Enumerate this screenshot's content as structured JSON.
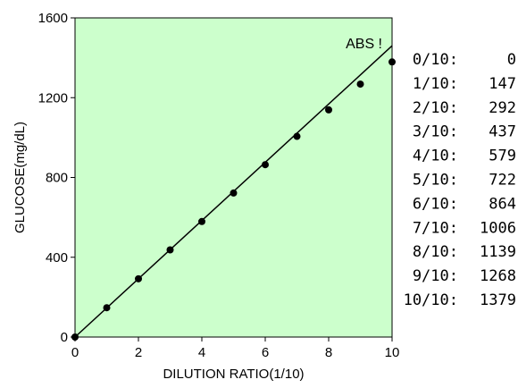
{
  "chart_data": {
    "type": "scatter",
    "xlabel": "DILUTION RATIO(1/10)",
    "ylabel": "GLUCOSE(mg/dL)",
    "xlim": [
      0,
      10
    ],
    "ylim": [
      0,
      1600
    ],
    "xticks": [
      "0",
      "2",
      "4",
      "6",
      "8",
      "10"
    ],
    "yticks": [
      "0",
      "400",
      "800",
      "1200",
      "1600"
    ],
    "plot_background": "#ccffcc",
    "grid": false,
    "annotation": "ABS !",
    "points": {
      "x": [
        0,
        1,
        2,
        3,
        4,
        5,
        6,
        7,
        8,
        9,
        10
      ],
      "y": [
        0,
        147,
        292,
        437,
        579,
        722,
        864,
        1006,
        1139,
        1268,
        1379
      ]
    },
    "fit_line": {
      "x": [
        0,
        10
      ],
      "y": [
        0,
        1460
      ]
    }
  },
  "table": {
    "rows": [
      {
        "label": "0/10:",
        "value": "0"
      },
      {
        "label": "1/10:",
        "value": "147"
      },
      {
        "label": "2/10:",
        "value": "292"
      },
      {
        "label": "3/10:",
        "value": "437"
      },
      {
        "label": "4/10:",
        "value": "579"
      },
      {
        "label": "5/10:",
        "value": "722"
      },
      {
        "label": "6/10:",
        "value": "864"
      },
      {
        "label": "7/10:",
        "value": "1006"
      },
      {
        "label": "8/10:",
        "value": "1139"
      },
      {
        "label": "9/10:",
        "value": "1268"
      },
      {
        "label": "10/10:",
        "value": "1379"
      }
    ]
  }
}
